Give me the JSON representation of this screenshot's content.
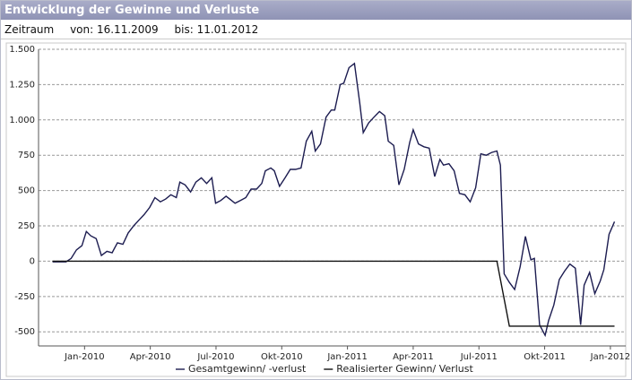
{
  "header": {
    "title": "Entwicklung der Gewinne und Verluste",
    "period": "Zeitraum",
    "from": "von: 16.11.2009",
    "to": "bis: 11.01.2012"
  },
  "chart_data": {
    "type": "line",
    "xlim": [
      -2.1,
      24.7
    ],
    "xticks": [
      {
        "value": 0,
        "label": "Jan-2010"
      },
      {
        "value": 3,
        "label": "Apr-2010"
      },
      {
        "value": 6,
        "label": "Jul-2010"
      },
      {
        "value": 9,
        "label": "Okt-2010"
      },
      {
        "value": 12,
        "label": "Jan-2011"
      },
      {
        "value": 15,
        "label": "Apr-2011"
      },
      {
        "value": 18,
        "label": "Jul-2011"
      },
      {
        "value": 21,
        "label": "Okt-2011"
      },
      {
        "value": 24,
        "label": "Jan-2012"
      }
    ],
    "ylim": [
      -600,
      1500
    ],
    "yticks": [
      -500,
      -250,
      0,
      250,
      500,
      750,
      {
        "value": 1000,
        "label": "1.000"
      },
      {
        "value": 1250,
        "label": "1.250"
      },
      {
        "value": 1500,
        "label": "1.500"
      }
    ],
    "grid": true,
    "legend": "bottom",
    "series": [
      {
        "name": "Gesamtgewinn/ -verlust",
        "color": "#1c1c50",
        "x": [
          -1.46,
          -0.85,
          -0.61,
          -0.37,
          -0.12,
          0.08,
          0.28,
          0.53,
          0.77,
          1.02,
          1.26,
          1.5,
          1.75,
          1.99,
          2.24,
          2.48,
          2.72,
          2.97,
          3.21,
          3.46,
          3.7,
          3.94,
          4.19,
          4.35,
          4.59,
          4.84,
          5.08,
          5.33,
          5.57,
          5.81,
          5.98,
          6.22,
          6.46,
          6.71,
          6.87,
          7.11,
          7.36,
          7.6,
          7.85,
          8.09,
          8.25,
          8.5,
          8.66,
          8.9,
          9.15,
          9.39,
          9.63,
          9.88,
          10.12,
          10.37,
          10.53,
          10.77,
          11.02,
          11.26,
          11.42,
          11.67,
          11.83,
          12.07,
          12.32,
          12.56,
          12.72,
          12.97,
          13.21,
          13.46,
          13.7,
          13.86,
          14.11,
          14.35,
          14.59,
          14.84,
          15.0,
          15.24,
          15.49,
          15.73,
          15.98,
          16.22,
          16.38,
          16.63,
          16.87,
          17.11,
          17.36,
          17.6,
          17.85,
          18.09,
          18.33,
          18.58,
          18.82,
          18.98,
          19.15,
          19.39,
          19.63,
          19.88,
          20.12,
          20.37,
          20.53,
          20.77,
          21.02,
          21.18,
          21.42,
          21.67,
          21.91,
          22.15,
          22.4,
          22.64,
          22.8,
          23.05,
          23.29,
          23.54,
          23.7,
          23.94,
          24.19
        ],
        "values": [
          -5,
          -5,
          20,
          80,
          110,
          210,
          180,
          160,
          40,
          70,
          60,
          130,
          120,
          200,
          250,
          290,
          330,
          380,
          450,
          420,
          440,
          470,
          450,
          560,
          540,
          490,
          560,
          590,
          550,
          590,
          410,
          430,
          460,
          430,
          410,
          430,
          450,
          510,
          510,
          550,
          640,
          660,
          640,
          530,
          590,
          650,
          650,
          660,
          850,
          920,
          780,
          830,
          1020,
          1070,
          1070,
          1250,
          1260,
          1370,
          1400,
          1120,
          910,
          980,
          1020,
          1060,
          1030,
          850,
          820,
          540,
          650,
          840,
          930,
          830,
          810,
          800,
          600,
          720,
          680,
          690,
          640,
          480,
          470,
          420,
          520,
          760,
          750,
          770,
          780,
          680,
          -90,
          -150,
          -200,
          -40,
          175,
          10,
          20,
          -450,
          -525,
          -420,
          -310,
          -130,
          -70,
          -20,
          -50,
          -450,
          -170,
          -80,
          -230,
          -140,
          -60,
          190,
          280
        ]
      },
      {
        "name": "Realisierter Gewinn/ Verlust",
        "color": "#111111",
        "x": [
          -1.46,
          18.82,
          19.39,
          24.19
        ],
        "values": [
          0,
          0,
          -460,
          -460
        ]
      }
    ]
  }
}
